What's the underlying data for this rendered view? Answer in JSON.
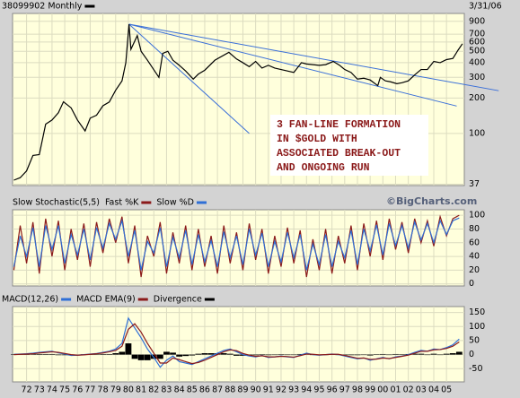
{
  "chart_data": [
    {
      "type": "line",
      "log": true,
      "date": "3/31/06",
      "xlim": [
        1970.9,
        2006.4
      ],
      "ylim": [
        36,
        1050
      ],
      "yticks": [
        37,
        100,
        200,
        300,
        400,
        500,
        600,
        700,
        900
      ],
      "series": [
        {
          "name": "38099902 Monthly",
          "color": "#000000",
          "x": [
            1971.0,
            1971.5,
            1972.0,
            1972.5,
            1973.0,
            1973.5,
            1974.0,
            1974.5,
            1974.9,
            1975.5,
            1976.0,
            1976.6,
            1977.0,
            1977.5,
            1978.0,
            1978.5,
            1979.0,
            1979.5,
            1979.8,
            1980.05,
            1980.2,
            1980.7,
            1981.0,
            1981.5,
            1982.4,
            1982.7,
            1983.1,
            1983.5,
            1984.0,
            1984.5,
            1985.1,
            1985.5,
            1986.0,
            1986.8,
            1987.9,
            1988.5,
            1989.0,
            1989.5,
            1990.0,
            1990.5,
            1991.0,
            1991.5,
            1992.0,
            1992.5,
            1993.0,
            1993.6,
            1994.0,
            1994.5,
            1995.0,
            1995.5,
            1996.1,
            1996.6,
            1997.0,
            1997.5,
            1998.0,
            1998.5,
            1999.0,
            1999.6,
            1999.8,
            2000.2,
            2000.6,
            2001.1,
            2001.5,
            2002.0,
            2002.5,
            2003.0,
            2003.5,
            2004.0,
            2004.5,
            2005.0,
            2005.5,
            2005.9,
            2006.25
          ],
          "values": [
            40,
            42,
            48,
            65,
            66,
            120,
            130,
            150,
            186,
            165,
            130,
            105,
            135,
            143,
            172,
            185,
            233,
            280,
            400,
            850,
            520,
            680,
            500,
            420,
            300,
            480,
            500,
            420,
            380,
            340,
            290,
            320,
            345,
            420,
            490,
            430,
            400,
            370,
            410,
            360,
            380,
            360,
            350,
            340,
            330,
            400,
            390,
            385,
            380,
            385,
            410,
            380,
            350,
            330,
            290,
            295,
            285,
            255,
            300,
            280,
            275,
            265,
            270,
            280,
            315,
            350,
            350,
            410,
            400,
            425,
            435,
            510,
            580
          ]
        }
      ],
      "trend_color": "#3a6fd8",
      "trend_lines": [
        {
          "x": [
            1980.05,
            1989.5
          ],
          "values": [
            850,
            100
          ]
        },
        {
          "x": [
            1980.05,
            2005.8
          ],
          "values": [
            850,
            171
          ]
        },
        {
          "x": [
            1980.05,
            2009.1
          ],
          "values": [
            850,
            231
          ]
        }
      ],
      "annotation": [
        "3 FAN-LINE FORMATION",
        "IN $GOLD WITH",
        "ASSOCIATED BREAK-OUT",
        "AND ONGOING RUN"
      ],
      "watermark": "©BigCharts.com"
    },
    {
      "type": "line",
      "title": "Slow Stochastic(5,5)",
      "xlim": [
        1970.9,
        2006.4
      ],
      "ylim": [
        -3,
        108
      ],
      "yticks": [
        0,
        20,
        40,
        60,
        80,
        100
      ],
      "x": [
        1971.0,
        1971.5,
        1972.0,
        1972.5,
        1973.0,
        1973.5,
        1974.0,
        1974.5,
        1975.0,
        1975.5,
        1976.0,
        1976.5,
        1977.0,
        1977.5,
        1978.0,
        1978.5,
        1979.0,
        1979.5,
        1980.0,
        1980.5,
        1981.0,
        1981.5,
        1982.0,
        1982.5,
        1983.0,
        1983.5,
        1984.0,
        1984.5,
        1985.0,
        1985.5,
        1986.0,
        1986.5,
        1987.0,
        1987.5,
        1988.0,
        1988.5,
        1989.0,
        1989.5,
        1990.0,
        1990.5,
        1991.0,
        1991.5,
        1992.0,
        1992.5,
        1993.0,
        1993.5,
        1994.0,
        1994.5,
        1995.0,
        1995.5,
        1996.0,
        1996.5,
        1997.0,
        1997.5,
        1998.0,
        1998.5,
        1999.0,
        1999.5,
        2000.0,
        2000.5,
        2001.0,
        2001.5,
        2002.0,
        2002.5,
        2003.0,
        2003.5,
        2004.0,
        2004.5,
        2005.0,
        2005.5,
        2006.0
      ],
      "series": [
        {
          "name": "Fast %K",
          "color": "#8b1a1a",
          "values": [
            20,
            85,
            30,
            90,
            15,
            95,
            40,
            92,
            20,
            80,
            35,
            88,
            25,
            90,
            45,
            95,
            60,
            98,
            30,
            85,
            10,
            70,
            40,
            90,
            15,
            75,
            30,
            85,
            20,
            80,
            25,
            70,
            15,
            85,
            30,
            75,
            20,
            88,
            35,
            80,
            15,
            70,
            25,
            82,
            30,
            78,
            10,
            65,
            20,
            80,
            15,
            70,
            30,
            85,
            20,
            88,
            40,
            92,
            35,
            95,
            50,
            90,
            45,
            95,
            60,
            92,
            55,
            98,
            70,
            95,
            100
          ]
        },
        {
          "name": "Slow %D",
          "color": "#2f6fd6",
          "values": [
            25,
            70,
            40,
            82,
            25,
            85,
            50,
            85,
            30,
            72,
            42,
            80,
            35,
            82,
            52,
            88,
            65,
            92,
            40,
            78,
            20,
            62,
            45,
            82,
            25,
            68,
            38,
            78,
            28,
            72,
            32,
            63,
            25,
            76,
            38,
            70,
            28,
            80,
            42,
            74,
            25,
            62,
            32,
            75,
            38,
            72,
            20,
            58,
            28,
            72,
            25,
            62,
            38,
            78,
            28,
            80,
            48,
            86,
            42,
            88,
            56,
            85,
            52,
            90,
            64,
            88,
            60,
            92,
            72,
            92,
            96
          ]
        }
      ]
    },
    {
      "type": "line",
      "xlim": [
        1970.9,
        2006.4
      ],
      "ylim": [
        -97,
        171
      ],
      "yticks": [
        -50,
        0,
        50,
        100,
        150
      ],
      "x": [
        1971.0,
        1971.5,
        1972.0,
        1972.5,
        1973.0,
        1973.5,
        1974.0,
        1974.5,
        1975.0,
        1975.5,
        1976.0,
        1976.5,
        1977.0,
        1977.5,
        1978.0,
        1978.5,
        1979.0,
        1979.5,
        1980.0,
        1980.5,
        1981.0,
        1981.5,
        1982.0,
        1982.5,
        1983.0,
        1983.5,
        1984.0,
        1984.5,
        1985.0,
        1985.5,
        1986.0,
        1986.5,
        1987.0,
        1987.5,
        1988.0,
        1988.5,
        1989.0,
        1989.5,
        1990.0,
        1990.5,
        1991.0,
        1991.5,
        1992.0,
        1992.5,
        1993.0,
        1993.5,
        1994.0,
        1994.5,
        1995.0,
        1995.5,
        1996.0,
        1996.5,
        1997.0,
        1997.5,
        1998.0,
        1998.5,
        1999.0,
        1999.5,
        2000.0,
        2000.5,
        2001.0,
        2001.5,
        2002.0,
        2002.5,
        2003.0,
        2003.5,
        2004.0,
        2004.5,
        2005.0,
        2005.5,
        2006.0
      ],
      "series": [
        {
          "name": "MACD(12,26)",
          "color": "#2f6fd6",
          "values": [
            1,
            2,
            3,
            5,
            8,
            10,
            12,
            6,
            2,
            -3,
            -2,
            0,
            2,
            4,
            8,
            12,
            20,
            40,
            130,
            95,
            60,
            20,
            -10,
            -45,
            -20,
            -5,
            -25,
            -30,
            -35,
            -25,
            -15,
            -5,
            5,
            15,
            20,
            10,
            0,
            -5,
            -8,
            -3,
            -10,
            -8,
            -5,
            -8,
            -10,
            -2,
            5,
            0,
            -2,
            0,
            2,
            0,
            -5,
            -10,
            -15,
            -12,
            -20,
            -15,
            -10,
            -15,
            -8,
            -5,
            0,
            8,
            15,
            12,
            20,
            18,
            25,
            35,
            55
          ]
        },
        {
          "name": "MACD EMA(9)",
          "color": "#8b1a1a",
          "values": [
            0,
            1,
            2,
            3,
            6,
            8,
            10,
            8,
            4,
            0,
            -2,
            -1,
            1,
            3,
            6,
            10,
            15,
            30,
            90,
            110,
            80,
            40,
            5,
            -30,
            -30,
            -12,
            -18,
            -25,
            -32,
            -28,
            -20,
            -10,
            0,
            10,
            17,
            14,
            4,
            -2,
            -6,
            -4,
            -8,
            -8,
            -6,
            -7,
            -9,
            -4,
            2,
            1,
            -1,
            0,
            1,
            1,
            -3,
            -8,
            -13,
            -12,
            -17,
            -16,
            -12,
            -14,
            -10,
            -6,
            -2,
            5,
            12,
            12,
            17,
            18,
            22,
            30,
            45
          ]
        },
        {
          "name": "Divergence",
          "type": "bar",
          "color": "#000000",
          "values": [
            1,
            1,
            1,
            2,
            2,
            2,
            2,
            -2,
            -2,
            -3,
            0,
            1,
            1,
            1,
            2,
            2,
            5,
            10,
            40,
            -15,
            -20,
            -20,
            -15,
            -15,
            10,
            7,
            -7,
            -5,
            -3,
            3,
            5,
            5,
            5,
            5,
            3,
            -4,
            -4,
            -3,
            -2,
            1,
            -2,
            0,
            1,
            -1,
            -1,
            2,
            3,
            -1,
            -1,
            0,
            1,
            -1,
            -2,
            -2,
            -2,
            0,
            -3,
            1,
            2,
            -1,
            2,
            1,
            2,
            3,
            3,
            0,
            3,
            0,
            3,
            5,
            10
          ]
        }
      ],
      "xticks": [
        {
          "value": 1972,
          "label": "72"
        },
        {
          "value": 1973,
          "label": "73"
        },
        {
          "value": 1974,
          "label": "74"
        },
        {
          "value": 1975,
          "label": "75"
        },
        {
          "value": 1976,
          "label": "76"
        },
        {
          "value": 1977,
          "label": "77"
        },
        {
          "value": 1978,
          "label": "78"
        },
        {
          "value": 1979,
          "label": "79"
        },
        {
          "value": 1980,
          "label": "80"
        },
        {
          "value": 1981,
          "label": "81"
        },
        {
          "value": 1982,
          "label": "82"
        },
        {
          "value": 1983,
          "label": "83"
        },
        {
          "value": 1984,
          "label": "84"
        },
        {
          "value": 1985,
          "label": "85"
        },
        {
          "value": 1986,
          "label": "86"
        },
        {
          "value": 1987,
          "label": "87"
        },
        {
          "value": 1988,
          "label": "88"
        },
        {
          "value": 1989,
          "label": "89"
        },
        {
          "value": 1990,
          "label": "90"
        },
        {
          "value": 1991,
          "label": "91"
        },
        {
          "value": 1992,
          "label": "92"
        },
        {
          "value": 1993,
          "label": "93"
        },
        {
          "value": 1994,
          "label": "94"
        },
        {
          "value": 1995,
          "label": "95"
        },
        {
          "value": 1996,
          "label": "96"
        },
        {
          "value": 1997,
          "label": "97"
        },
        {
          "value": 1998,
          "label": "98"
        },
        {
          "value": 1999,
          "label": "99"
        },
        {
          "value": 2000,
          "label": "00"
        },
        {
          "value": 2001,
          "label": "01"
        },
        {
          "value": 2002,
          "label": "02"
        },
        {
          "value": 2003,
          "label": "03"
        },
        {
          "value": 2004,
          "label": "04"
        },
        {
          "value": 2005,
          "label": "05"
        }
      ]
    }
  ]
}
